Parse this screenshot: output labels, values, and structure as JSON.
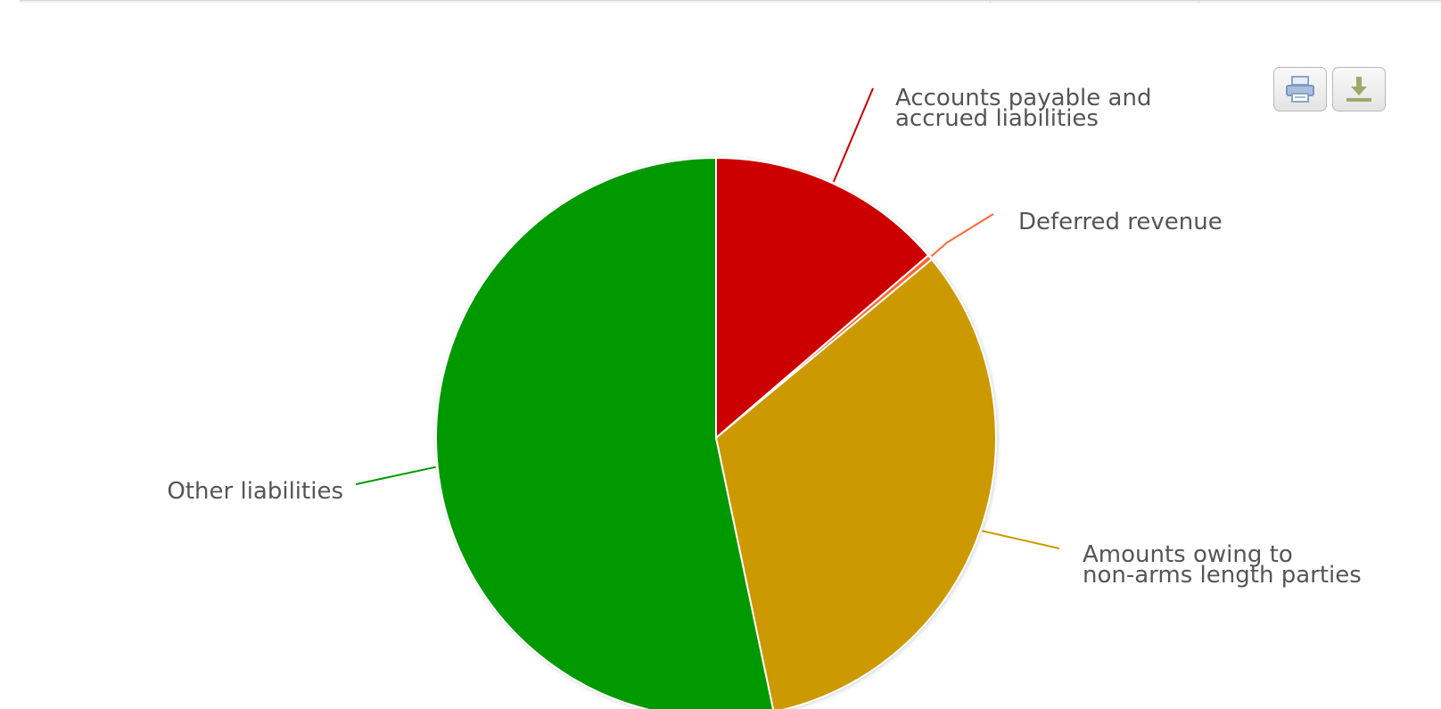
{
  "toolbar": {
    "print_icon": "print-icon",
    "download_icon": "download-icon"
  },
  "chart_data": {
    "type": "pie",
    "title": "",
    "legend": "none",
    "data_labels": "outside with connector lines",
    "series": [
      {
        "values": [
          {
            "name": "Accounts payable and accrued liabilities",
            "lines": [
              "Accounts payable and",
              "accrued liabilities"
            ],
            "value": 0.137,
            "color": "#cc0000"
          },
          {
            "name": "Deferred revenue",
            "lines": [
              "Deferred revenue"
            ],
            "value": 0.003,
            "color": "#ff6633"
          },
          {
            "name": "Amounts owing to non-arms length parties",
            "lines": [
              "Amounts owing to",
              "non-arms length parties"
            ],
            "value": 0.327,
            "color": "#cc9900"
          },
          {
            "name": "Other liabilities",
            "lines": [
              "Other liabilities"
            ],
            "value": 0.533,
            "color": "#009900"
          }
        ]
      }
    ]
  }
}
